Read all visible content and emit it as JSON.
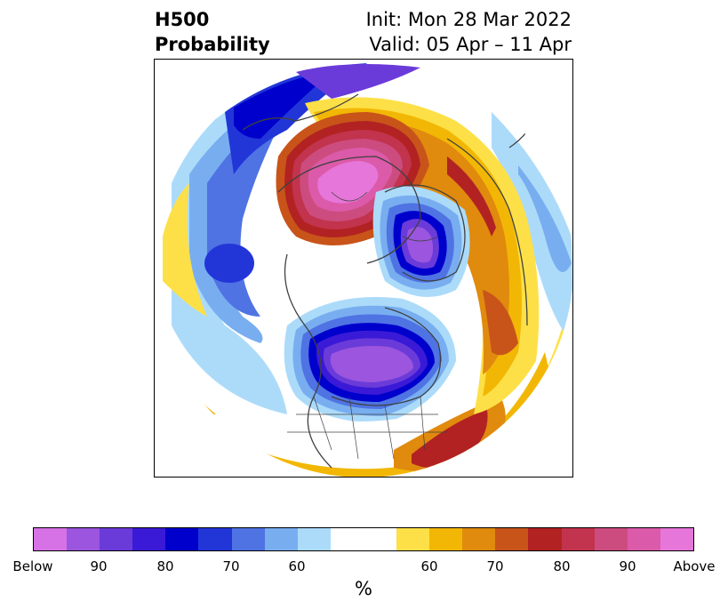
{
  "title": {
    "left_line1": "H500",
    "left_line2": "Probability",
    "right_line1": "Init: Mon 28 Mar 2022",
    "right_line2": "Valid: 05 Apr – 11 Apr"
  },
  "colorbar": {
    "unit": "%",
    "tick_labels": [
      "Below",
      "90",
      "80",
      "70",
      "60",
      "60",
      "70",
      "80",
      "90",
      "Above"
    ],
    "colors": [
      "#d772e6",
      "#9b55de",
      "#6b3bd9",
      "#3a1ad6",
      "#0000cc",
      "#2236d8",
      "#4f73e3",
      "#78aef0",
      "#acdbfa",
      "#ffffff",
      "#ffffff",
      "#fde047",
      "#f2b705",
      "#e08a0e",
      "#c8541a",
      "#b22222",
      "#c2334d",
      "#cc4c7f",
      "#db5aa9",
      "#e676d9"
    ]
  },
  "map": {
    "projection": "north-polar-stereographic",
    "features": [
      "continents",
      "country-borders",
      "state-province-borders"
    ]
  }
}
